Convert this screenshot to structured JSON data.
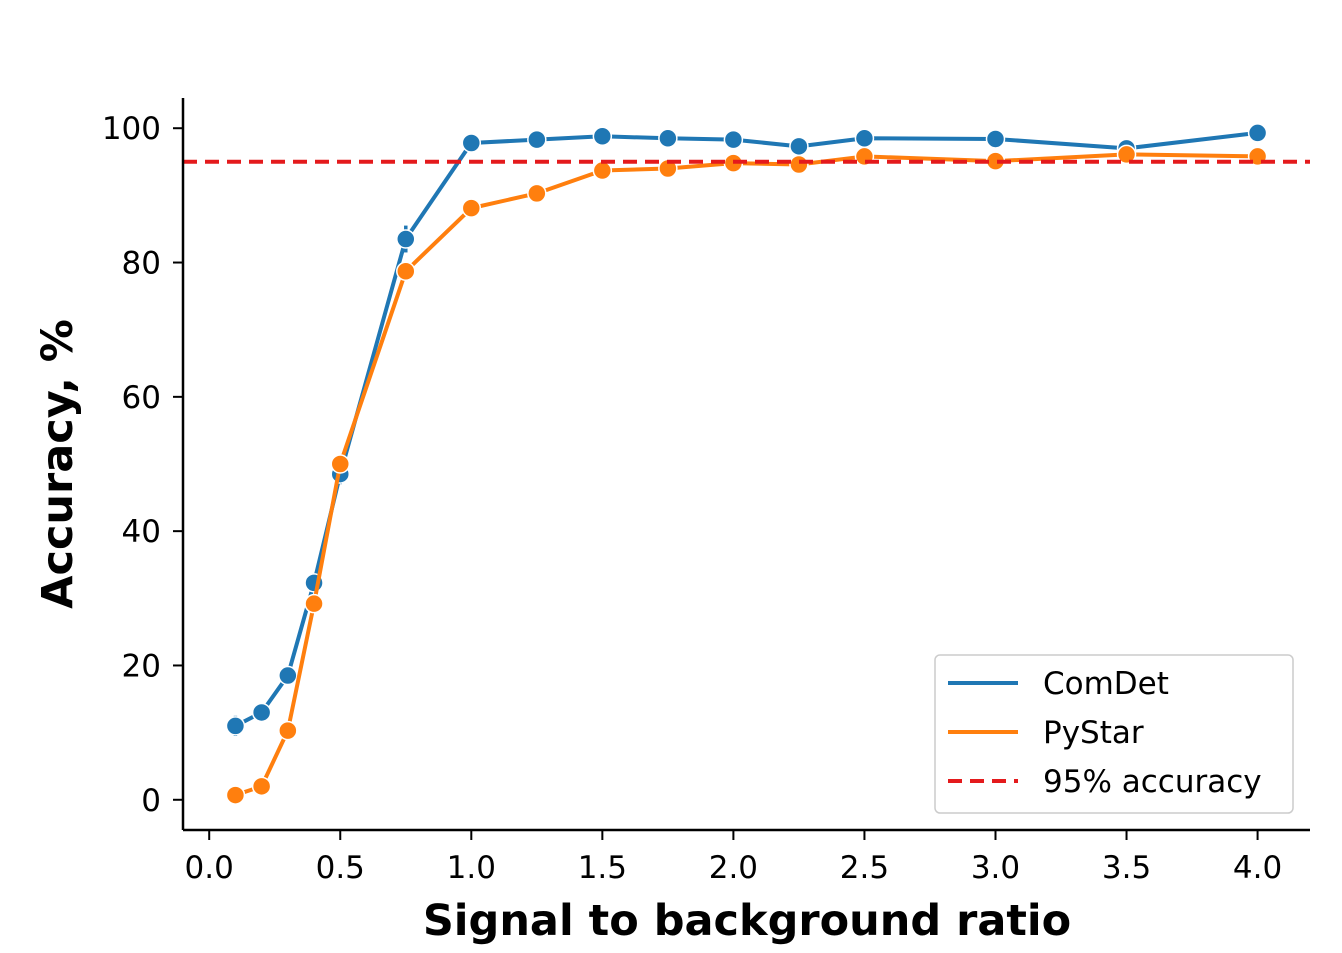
{
  "chart_data": {
    "type": "line",
    "xlabel": "Signal to background ratio",
    "ylabel": "Accuracy, %",
    "xlim": [
      -0.1,
      4.2
    ],
    "ylim": [
      -4.5,
      104.5
    ],
    "xticks": [
      0.0,
      0.5,
      1.0,
      1.5,
      2.0,
      2.5,
      3.0,
      3.5,
      4.0
    ],
    "xtick_labels": [
      "0.0",
      "0.5",
      "1.0",
      "1.5",
      "2.0",
      "2.5",
      "3.0",
      "3.5",
      "4.0"
    ],
    "yticks": [
      0,
      20,
      40,
      60,
      80,
      100
    ],
    "ytick_labels": [
      "0",
      "20",
      "40",
      "60",
      "80",
      "100"
    ],
    "grid": false,
    "legend_position": "lower-right",
    "series": [
      {
        "name": "ComDet",
        "color": "#1f77b4",
        "x": [
          0.1,
          0.2,
          0.3,
          0.4,
          0.5,
          0.75,
          1.0,
          1.25,
          1.5,
          1.75,
          2.0,
          2.25,
          2.5,
          3.0,
          3.5,
          4.0
        ],
        "y": [
          11.0,
          13.0,
          18.5,
          32.3,
          48.5,
          83.5,
          97.8,
          98.3,
          98.8,
          98.5,
          98.3,
          97.3,
          98.5,
          98.4,
          97.0,
          99.3
        ],
        "err": [
          1.5,
          1.3,
          1.2,
          1.2,
          1.5,
          2.0,
          0.5,
          0.5,
          0.4,
          0.4,
          0.4,
          0.6,
          0.4,
          0.4,
          0.5,
          0.3
        ]
      },
      {
        "name": "PyStar",
        "color": "#ff7f0e",
        "x": [
          0.1,
          0.2,
          0.3,
          0.4,
          0.5,
          0.75,
          1.0,
          1.25,
          1.5,
          1.75,
          2.0,
          2.25,
          2.5,
          3.0,
          3.5,
          4.0
        ],
        "y": [
          0.7,
          2.0,
          10.3,
          29.2,
          50.0,
          78.7,
          88.1,
          90.3,
          93.7,
          94.0,
          94.8,
          94.6,
          95.8,
          95.1,
          96.1,
          95.8
        ],
        "err": [
          0.3,
          0.3,
          0.6,
          0.8,
          0.8,
          0.8,
          0.6,
          1.2,
          0.5,
          0.5,
          0.5,
          0.5,
          0.5,
          0.5,
          0.5,
          0.5
        ]
      }
    ],
    "reference_line": {
      "name": "95% accuracy",
      "y": 95,
      "color": "#e41a1c",
      "style": "dashed"
    }
  }
}
